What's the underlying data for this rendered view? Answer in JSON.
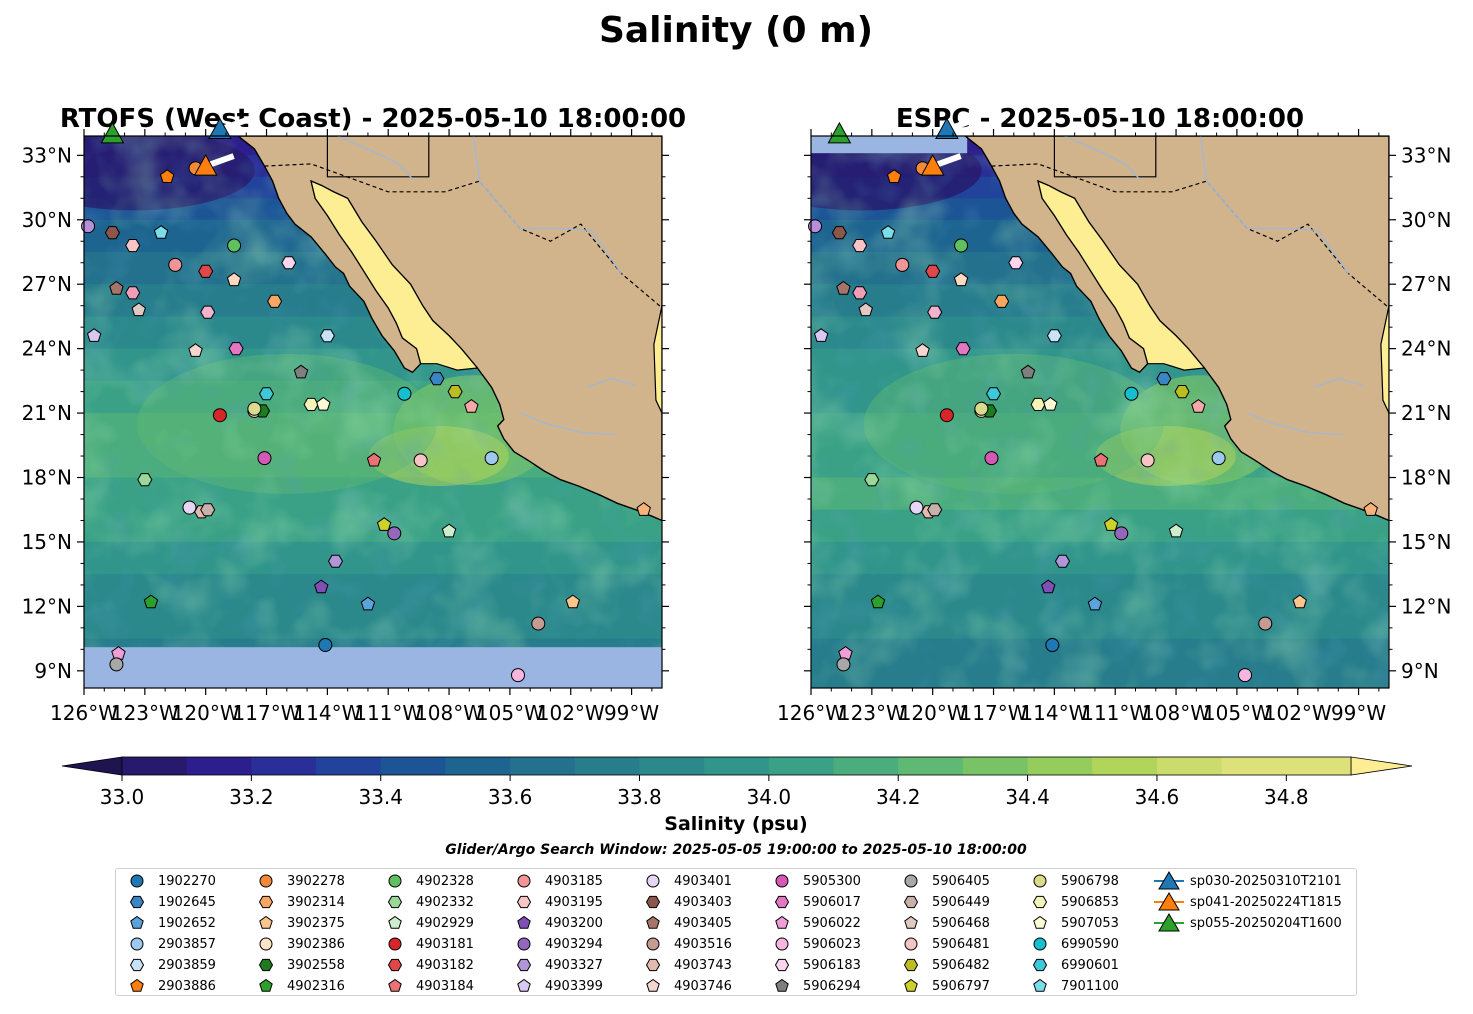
{
  "figure": {
    "suptitle": "Salinity (0 m)",
    "search_window": "Glider/Argo Search Window: 2025-05-05 19:00:00 to 2025-05-10 18:00:00"
  },
  "chart_data": [
    {
      "type": "map",
      "title": "RTOFS (West Coast) - 2025-05-10 18:00:00",
      "variable": "Salinity (0 m)",
      "lon_range": [
        -126,
        -97.5
      ],
      "lat_range": [
        8.2,
        33.9
      ],
      "x_ticks": [
        "126°W",
        "123°W",
        "120°W",
        "117°W",
        "114°W",
        "111°W",
        "108°W",
        "105°W",
        "102°W",
        "99°W"
      ],
      "y_ticks_left": [
        "9°N",
        "12°N",
        "15°N",
        "18°N",
        "21°N",
        "24°N",
        "27°N",
        "30°N",
        "33°N"
      ],
      "no_data_region": "south of about 10.1°N shown in light blue",
      "grid": false
    },
    {
      "type": "map",
      "title": "ESPC - 2025-05-10 18:00:00",
      "variable": "Salinity (0 m)",
      "lon_range": [
        -126,
        -97.5
      ],
      "lat_range": [
        8.2,
        33.9
      ],
      "x_ticks": [
        "126°W",
        "123°W",
        "120°W",
        "117°W",
        "114°W",
        "111°W",
        "108°W",
        "105°W",
        "102°W",
        "99°W"
      ],
      "y_ticks_right": [
        "9°N",
        "12°N",
        "15°N",
        "18°N",
        "21°N",
        "24°N",
        "27°N",
        "30°N",
        "33°N"
      ],
      "no_data_region": "north of about 33.1°N shown in light blue",
      "grid": false
    }
  ],
  "colorbar": {
    "label": "Salinity (psu)",
    "min": 32.9,
    "max": 34.9,
    "step": 0.1,
    "extend": "both",
    "ticks": [
      "33.0",
      "33.2",
      "33.4",
      "33.6",
      "33.8",
      "34.0",
      "34.2",
      "34.4",
      "34.6",
      "34.8"
    ],
    "colors": [
      "#271a6c",
      "#2c1e8c",
      "#2a2e98",
      "#21439b",
      "#1c5496",
      "#1d6490",
      "#23718d",
      "#277d8c",
      "#2b898c",
      "#31958b",
      "#3aa186",
      "#4bad7d",
      "#5fb873",
      "#79c367",
      "#95cd5d",
      "#b1d45b",
      "#cbdc6c",
      "#dde17a"
    ],
    "under_color": "#1f1450",
    "over_color": "#fdee93"
  },
  "floats": [
    {
      "id": "1902270",
      "marker": "o",
      "color": "#1f77b4",
      "lon": -114.1,
      "lat": 10.2
    },
    {
      "id": "1902645",
      "marker": "h",
      "color": "#3a86c4",
      "lon": -108.6,
      "lat": 22.6
    },
    {
      "id": "1902652",
      "marker": "p",
      "color": "#5ba3dd",
      "lon": -112.0,
      "lat": 12.1
    },
    {
      "id": "2903857",
      "marker": "o",
      "color": "#9ec9ef",
      "lon": -105.9,
      "lat": 18.9
    },
    {
      "id": "2903859",
      "marker": "h",
      "color": "#c8e2f7",
      "lon": -114.0,
      "lat": 24.6
    },
    {
      "id": "2903886",
      "marker": "p",
      "color": "#ff7f0e",
      "lon": -121.9,
      "lat": 32.0
    },
    {
      "id": "3902278",
      "marker": "o",
      "color": "#f28a3a",
      "lon": -120.5,
      "lat": 32.4
    },
    {
      "id": "3902314",
      "marker": "h",
      "color": "#f8a663",
      "lon": -116.6,
      "lat": 26.2
    },
    {
      "id": "3902375",
      "marker": "p",
      "color": "#fbc58e",
      "lon": -101.9,
      "lat": 12.2
    },
    {
      "id": "3902386",
      "marker": "o",
      "color": "#fde3c7",
      "lon": -117.6,
      "lat": 21.1
    },
    {
      "id": "3902558",
      "marker": "h",
      "color": "#1e7b1e",
      "lon": -117.2,
      "lat": 21.1
    },
    {
      "id": "4902316",
      "marker": "p",
      "color": "#2ca02c",
      "lon": -122.7,
      "lat": 12.2
    },
    {
      "id": "4902328",
      "marker": "o",
      "color": "#60c060",
      "lon": -118.6,
      "lat": 28.8
    },
    {
      "id": "4902332",
      "marker": "h",
      "color": "#98d898",
      "lon": -123.0,
      "lat": 17.9
    },
    {
      "id": "4902929",
      "marker": "p",
      "color": "#cdeecd",
      "lon": -108.0,
      "lat": 15.5
    },
    {
      "id": "4903181",
      "marker": "o",
      "color": "#d62728",
      "lon": -119.3,
      "lat": 20.9
    },
    {
      "id": "4903182",
      "marker": "h",
      "color": "#e0474a",
      "lon": -120.0,
      "lat": 27.6
    },
    {
      "id": "4903184",
      "marker": "p",
      "color": "#ea7277",
      "lon": -111.7,
      "lat": 18.8
    },
    {
      "id": "4903185",
      "marker": "o",
      "color": "#f39496",
      "lon": -121.5,
      "lat": 27.9
    },
    {
      "id": "4903195",
      "marker": "h",
      "color": "#f9c4c6",
      "lon": -123.6,
      "lat": 28.8
    },
    {
      "id": "4903200",
      "marker": "p",
      "color": "#7f4fb5",
      "lon": -114.3,
      "lat": 12.9
    },
    {
      "id": "4903294",
      "marker": "o",
      "color": "#9467bd",
      "lon": -110.7,
      "lat": 15.4
    },
    {
      "id": "4903327",
      "marker": "h",
      "color": "#b095d8",
      "lon": -113.6,
      "lat": 14.1
    },
    {
      "id": "4903399",
      "marker": "p",
      "color": "#d9c8f1",
      "lon": -125.5,
      "lat": 24.6
    },
    {
      "id": "4903401",
      "marker": "o",
      "color": "#e6d6f5",
      "lon": -120.8,
      "lat": 16.6
    },
    {
      "id": "4903403",
      "marker": "h",
      "color": "#8c564b",
      "lon": -124.6,
      "lat": 29.4
    },
    {
      "id": "4903405",
      "marker": "p",
      "color": "#a6756a",
      "lon": -124.4,
      "lat": 26.8
    },
    {
      "id": "4903516",
      "marker": "o",
      "color": "#c49c94",
      "lon": -103.6,
      "lat": 11.2
    },
    {
      "id": "4903743",
      "marker": "h",
      "color": "#e3bab0",
      "lon": -120.2,
      "lat": 16.4
    },
    {
      "id": "4903746",
      "marker": "p",
      "color": "#f2d6cf",
      "lon": -120.5,
      "lat": 23.9
    },
    {
      "id": "5905300",
      "marker": "o",
      "color": "#d458b5",
      "lon": -117.1,
      "lat": 18.9
    },
    {
      "id": "5906017",
      "marker": "h",
      "color": "#e377c2",
      "lon": -118.5,
      "lat": 24.0
    },
    {
      "id": "5906022",
      "marker": "p",
      "color": "#ef9ed7",
      "lon": -124.3,
      "lat": 9.8
    },
    {
      "id": "5906023",
      "marker": "o",
      "color": "#f7b6e0",
      "lon": -104.6,
      "lat": 8.8
    },
    {
      "id": "5906183",
      "marker": "h",
      "color": "#fbd4ee",
      "lon": -115.9,
      "lat": 28.0
    },
    {
      "id": "5906294",
      "marker": "p",
      "color": "#7f7f7f",
      "lon": -115.3,
      "lat": 22.9
    },
    {
      "id": "5906405",
      "marker": "o",
      "color": "#a8a8a8",
      "lon": -124.4,
      "lat": 9.3
    },
    {
      "id": "5906449",
      "marker": "h",
      "color": "#c7b1aa",
      "lon": -119.9,
      "lat": 16.5
    },
    {
      "id": "5906468",
      "marker": "p",
      "color": "#e1c9c3",
      "lon": -123.3,
      "lat": 25.8
    },
    {
      "id": "5906481",
      "marker": "o",
      "color": "#f6c4c4",
      "lon": -109.4,
      "lat": 18.8
    },
    {
      "id": "5906482",
      "marker": "h",
      "color": "#bcbd22",
      "lon": -107.7,
      "lat": 22.0
    },
    {
      "id": "5906797",
      "marker": "p",
      "color": "#cdd22a",
      "lon": -111.2,
      "lat": 15.8
    },
    {
      "id": "5906798",
      "marker": "o",
      "color": "#dbdb8d",
      "lon": -117.6,
      "lat": 21.2
    },
    {
      "id": "5906853",
      "marker": "h",
      "color": "#f4f3b8",
      "lon": -114.8,
      "lat": 21.4
    },
    {
      "id": "5907053",
      "marker": "p",
      "color": "#fcfbd6",
      "lon": -114.2,
      "lat": 21.4
    },
    {
      "id": "6990590",
      "marker": "o",
      "color": "#17becf",
      "lon": -110.2,
      "lat": 21.9
    },
    {
      "id": "6990601",
      "marker": "h",
      "color": "#3ec9d8",
      "lon": -117.0,
      "lat": 21.9
    },
    {
      "id": "7901100",
      "marker": "p",
      "color": "#7adde7",
      "lon": -122.2,
      "lat": 29.4
    }
  ],
  "extra_points": [
    {
      "marker": "o",
      "color": "#b88ed8",
      "lon": -125.8,
      "lat": 29.7
    },
    {
      "marker": "p",
      "color": "#f4a8a8",
      "lon": -106.9,
      "lat": 21.3
    },
    {
      "marker": "p",
      "color": "#f9b37a",
      "lon": -98.4,
      "lat": 16.5
    },
    {
      "marker": "p",
      "color": "#ffd9bf",
      "lon": -118.6,
      "lat": 27.2
    },
    {
      "marker": "h",
      "color": "#ef9eb8",
      "lon": -123.6,
      "lat": 26.6
    },
    {
      "marker": "h",
      "color": "#f3b3cf",
      "lon": -119.9,
      "lat": 25.7
    }
  ],
  "gliders": [
    {
      "id": "sp030-20250310T2101",
      "color": "#1f77b4",
      "lon": -119.3,
      "lat": 34.2
    },
    {
      "id": "sp041-20250224T1815",
      "color": "#ff7f0e",
      "lon": -120.0,
      "lat": 32.5
    },
    {
      "id": "sp055-20250204T1600",
      "color": "#2ca02c",
      "lon": -124.6,
      "lat": 34.0
    }
  ]
}
